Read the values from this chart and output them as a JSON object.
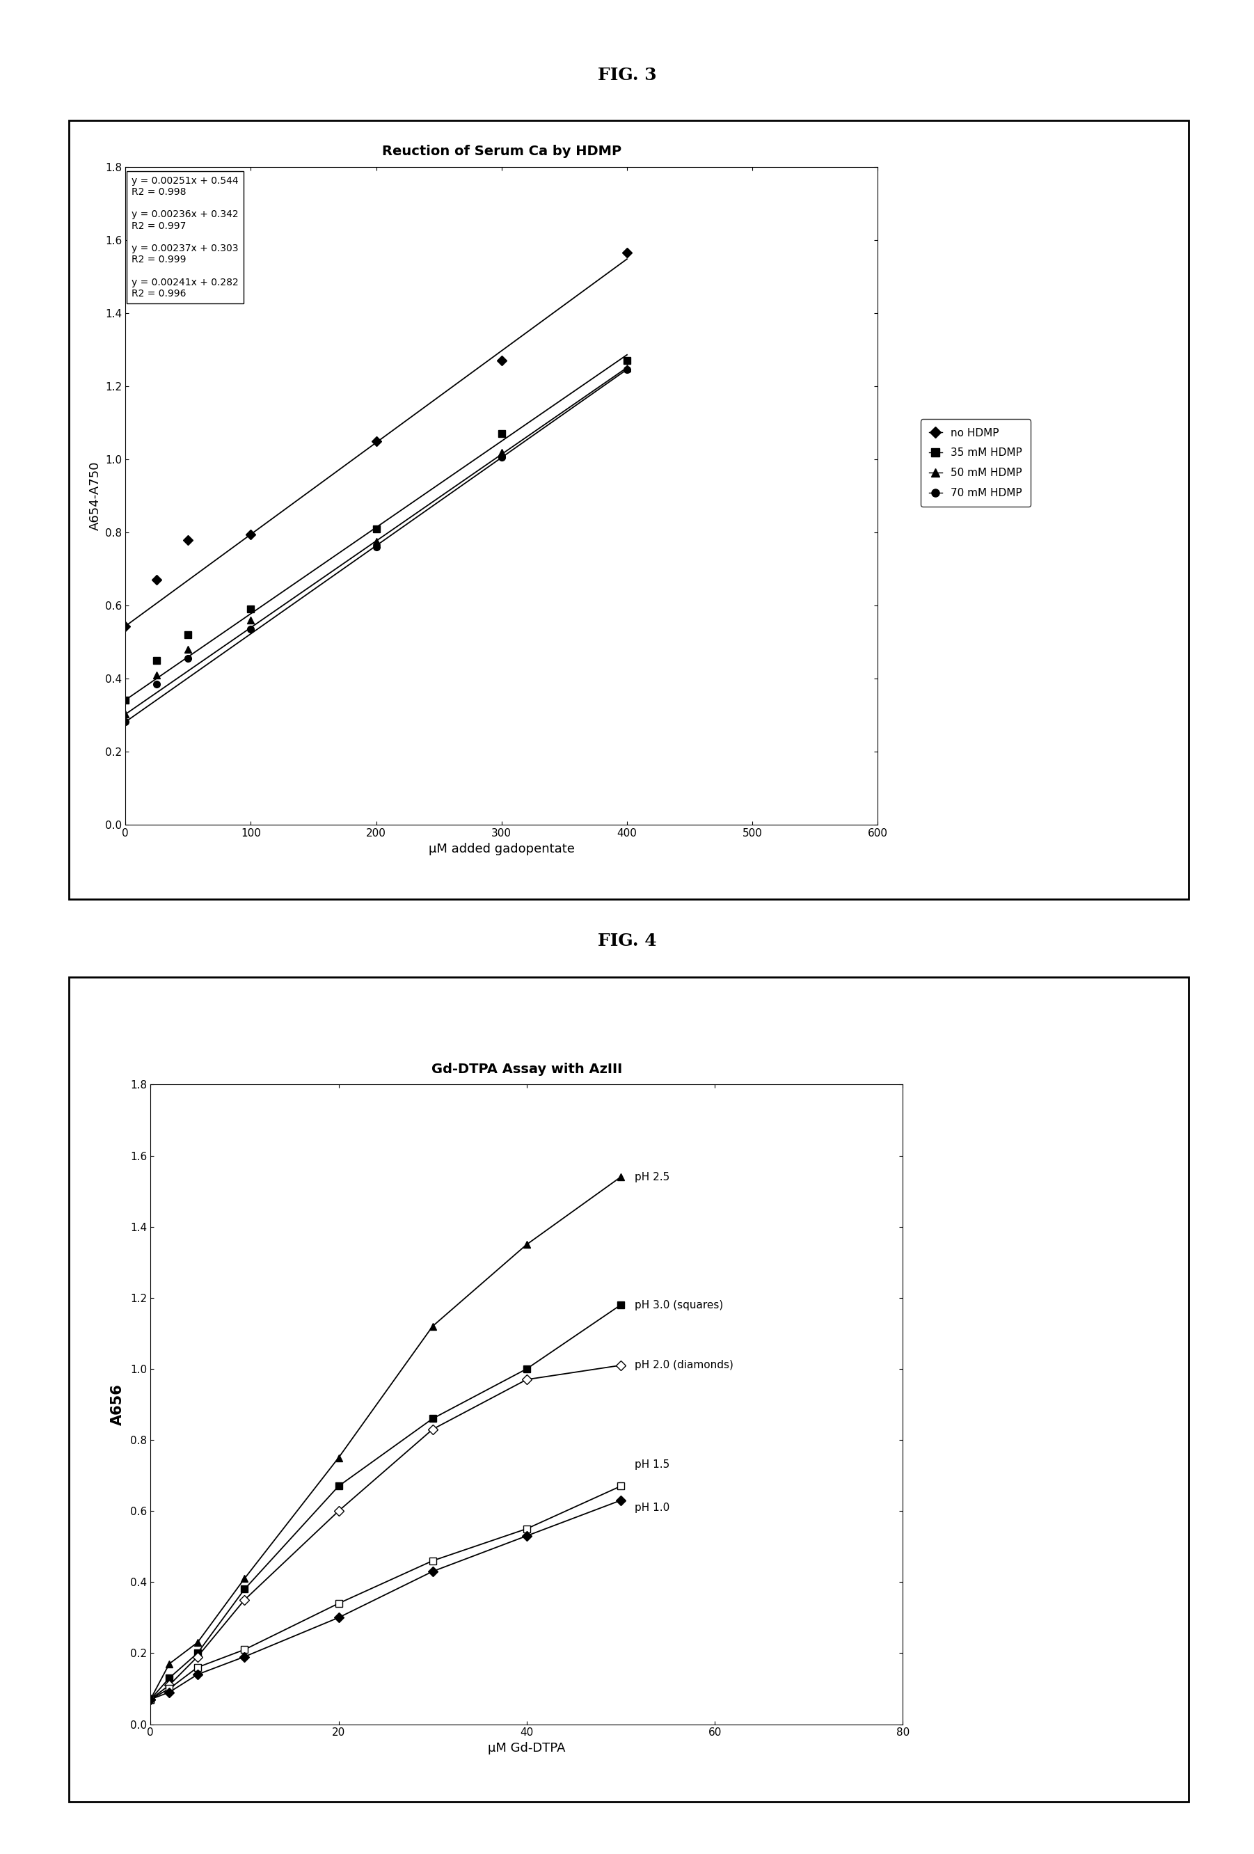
{
  "fig3": {
    "title": "Reuction of Serum Ca by HDMP",
    "xlabel": "μM added gadopentate",
    "ylabel": "A654-A750",
    "xlim": [
      0,
      600
    ],
    "ylim": [
      0.0,
      1.8
    ],
    "xticks": [
      0,
      100,
      200,
      300,
      400,
      500,
      600
    ],
    "ytick_labels": [
      "0.0",
      "0.2",
      "0.4",
      "0.6",
      "0.8",
      "1.0",
      "1.2",
      "1.4",
      "1.6",
      "1.8"
    ],
    "yticks": [
      0.0,
      0.2,
      0.4,
      0.6,
      0.8,
      1.0,
      1.2,
      1.4,
      1.6,
      1.8
    ],
    "series": [
      {
        "label": "no HDMP",
        "marker": "D",
        "x": [
          0,
          25,
          50,
          100,
          200,
          300,
          400
        ],
        "y": [
          0.544,
          0.67,
          0.78,
          0.795,
          1.05,
          1.27,
          1.565
        ],
        "slope": 0.00251,
        "intercept": 0.544
      },
      {
        "label": "35 mM HDMP",
        "marker": "s",
        "x": [
          0,
          25,
          50,
          100,
          200,
          300,
          400
        ],
        "y": [
          0.342,
          0.45,
          0.52,
          0.59,
          0.81,
          1.07,
          1.27
        ],
        "slope": 0.00236,
        "intercept": 0.342
      },
      {
        "label": "50 mM HDMP",
        "marker": "^",
        "x": [
          0,
          25,
          50,
          100,
          200,
          300,
          400
        ],
        "y": [
          0.303,
          0.41,
          0.48,
          0.56,
          0.775,
          1.02,
          1.25
        ],
        "slope": 0.00237,
        "intercept": 0.303
      },
      {
        "label": "70 mM HDMP",
        "marker": "o",
        "x": [
          0,
          25,
          50,
          100,
          200,
          300,
          400
        ],
        "y": [
          0.282,
          0.385,
          0.455,
          0.535,
          0.76,
          1.005,
          1.245
        ],
        "slope": 0.00241,
        "intercept": 0.282
      }
    ],
    "equations": [
      {
        "text": "y = 0.00251x + 0.544",
        "r2": "R2 = 0.998"
      },
      {
        "text": "y = 0.00236x + 0.342",
        "r2": "R2 = 0.997"
      },
      {
        "text": "y = 0.00237x + 0.303",
        "r2": "R2 = 0.999"
      },
      {
        "text": "y = 0.00241x + 0.282",
        "r2": "R2 = 0.996"
      }
    ],
    "legend_labels": [
      "no HDMP",
      "35 mM HDMP",
      "50 mM HDMP",
      "70 mM HDMP"
    ],
    "legend_markers": [
      "D",
      "s",
      "^",
      "o"
    ]
  },
  "fig4": {
    "title": "Gd-DTPA Assay with AzIII",
    "xlabel": "μM Gd-DTPA",
    "ylabel": "A656",
    "xlim": [
      0,
      80
    ],
    "ylim": [
      0,
      1.8
    ],
    "xticks": [
      0,
      20,
      40,
      60,
      80
    ],
    "yticks": [
      0.0,
      0.2,
      0.4,
      0.6,
      0.8,
      1.0,
      1.2,
      1.4,
      1.6,
      1.8
    ],
    "series": [
      {
        "label": "pH 2.5",
        "marker": "^",
        "markerfacecolor": "black",
        "x": [
          0,
          2,
          5,
          10,
          20,
          30,
          40,
          50
        ],
        "y": [
          0.07,
          0.17,
          0.23,
          0.41,
          0.75,
          1.12,
          1.35,
          1.54
        ],
        "annotation": "pH 2.5",
        "ann_x": 51.5,
        "ann_y": 1.54
      },
      {
        "label": "pH 3.0 (squares)",
        "marker": "s",
        "markerfacecolor": "black",
        "x": [
          0,
          2,
          5,
          10,
          20,
          30,
          40,
          50
        ],
        "y": [
          0.07,
          0.13,
          0.2,
          0.38,
          0.67,
          0.86,
          1.0,
          1.18
        ],
        "annotation": "pH 3.0 (squares)",
        "ann_x": 51.5,
        "ann_y": 1.18
      },
      {
        "label": "pH 2.0 (diamonds)",
        "marker": "D",
        "markerfacecolor": "white",
        "x": [
          0,
          2,
          5,
          10,
          20,
          30,
          40,
          50
        ],
        "y": [
          0.07,
          0.11,
          0.19,
          0.35,
          0.6,
          0.83,
          0.97,
          1.01
        ],
        "annotation": "pH 2.0 (diamonds)",
        "ann_x": 51.5,
        "ann_y": 1.01
      },
      {
        "label": "pH 1.5",
        "marker": "s",
        "markerfacecolor": "white",
        "x": [
          0,
          2,
          5,
          10,
          20,
          30,
          40,
          50
        ],
        "y": [
          0.07,
          0.1,
          0.16,
          0.21,
          0.34,
          0.46,
          0.55,
          0.67
        ],
        "annotation": "pH 1.5",
        "ann_x": 51.5,
        "ann_y": 0.73
      },
      {
        "label": "pH 1.0",
        "marker": "D",
        "markerfacecolor": "black",
        "x": [
          0,
          2,
          5,
          10,
          20,
          30,
          40,
          50
        ],
        "y": [
          0.07,
          0.09,
          0.14,
          0.19,
          0.3,
          0.43,
          0.53,
          0.63
        ],
        "annotation": "pH 1.0",
        "ann_x": 51.5,
        "ann_y": 0.61
      }
    ]
  },
  "fig3_label": "FIG. 3",
  "fig4_label": "FIG. 4"
}
